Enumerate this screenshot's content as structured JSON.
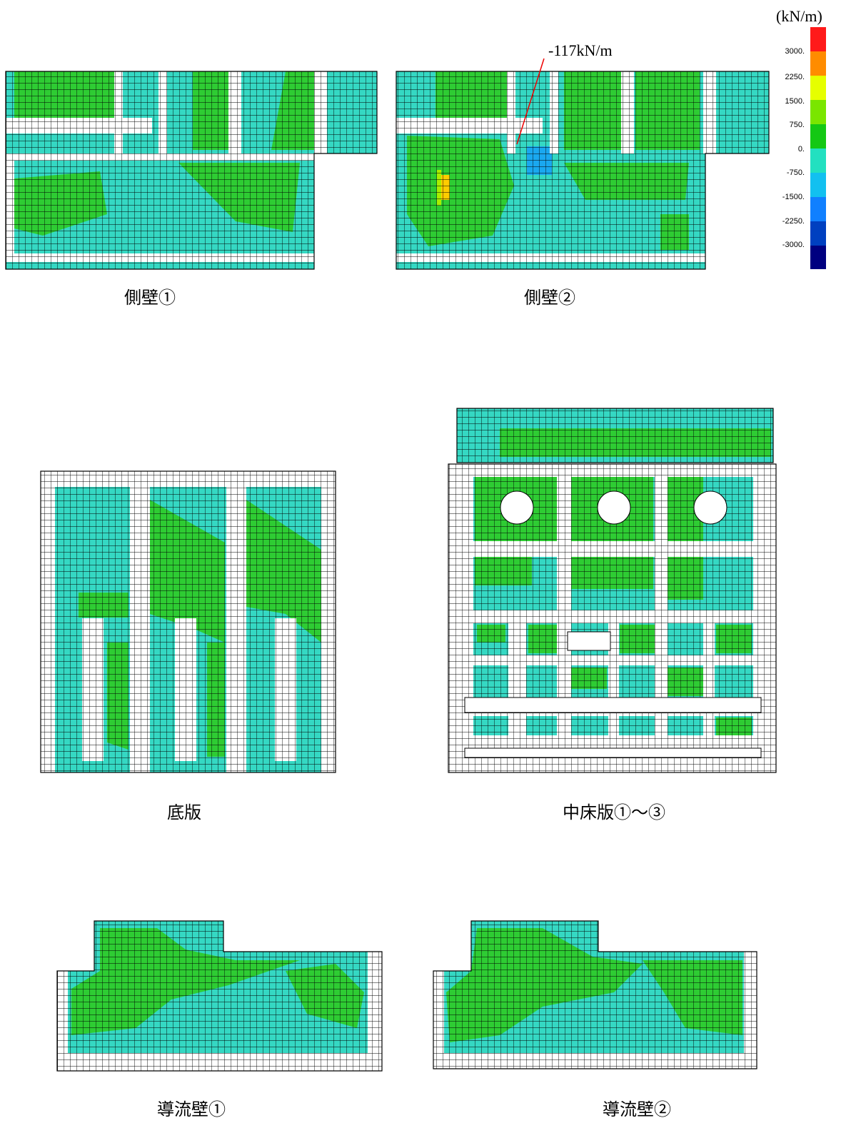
{
  "legend": {
    "unit": "(kN/m)",
    "labels": [
      "3000.",
      "2250.",
      "1500.",
      "750.",
      "0.",
      "-750.",
      "-1500.",
      "-2250.",
      "-3000."
    ]
  },
  "annotation": "-117kN/m",
  "panels": [
    {
      "caption": "側壁①"
    },
    {
      "caption": "側壁②"
    },
    {
      "caption": "底版"
    },
    {
      "caption": "中床版①～③"
    },
    {
      "caption": "導流壁①"
    },
    {
      "caption": "導流壁②"
    }
  ]
}
